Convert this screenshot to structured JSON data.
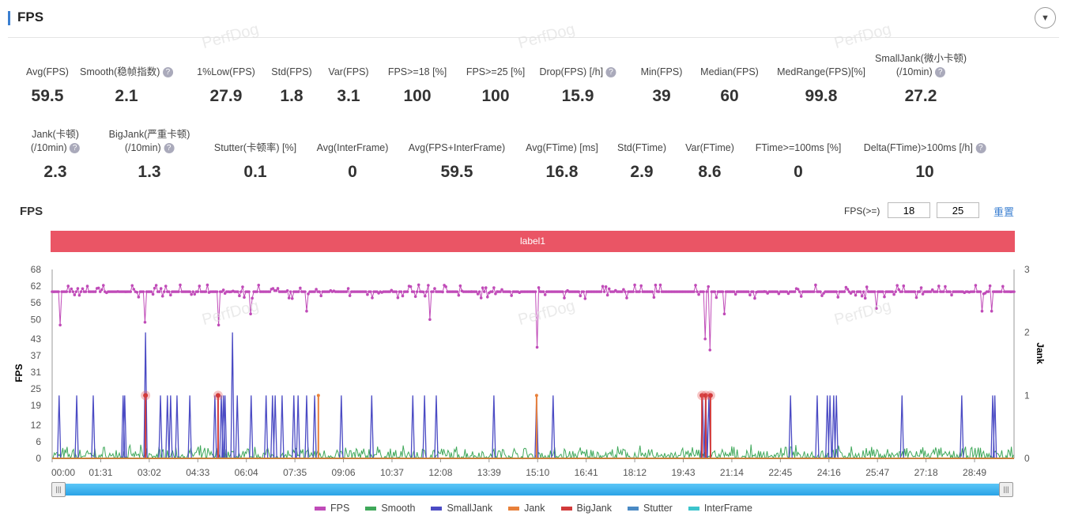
{
  "header": {
    "title": "FPS",
    "collapse_icon": "chevron-down-icon"
  },
  "watermark": "PerfDog",
  "metrics_row1": [
    {
      "label": "Avg(FPS)",
      "value": "59.5",
      "help": false
    },
    {
      "label": "Smooth(稳帧指数)",
      "value": "2.1",
      "help": true
    },
    {
      "label": "1%Low(FPS)",
      "value": "27.9",
      "help": false
    },
    {
      "label": "Std(FPS)",
      "value": "1.8",
      "help": false
    },
    {
      "label": "Var(FPS)",
      "value": "3.1",
      "help": false
    },
    {
      "label": "FPS>=18 [%]",
      "value": "100",
      "help": false
    },
    {
      "label": "FPS>=25 [%]",
      "value": "100",
      "help": false
    },
    {
      "label": "Drop(FPS) [/h]",
      "value": "15.9",
      "help": true
    },
    {
      "label": "Min(FPS)",
      "value": "39",
      "help": false
    },
    {
      "label": "Median(FPS)",
      "value": "60",
      "help": false
    },
    {
      "label": "MedRange(FPS)[%]",
      "value": "99.8",
      "help": false
    },
    {
      "label": "SmallJank(微小卡顿)",
      "label2": "(/10min)",
      "value": "27.2",
      "help": true
    }
  ],
  "metrics_row2": [
    {
      "label": "Jank(卡顿)",
      "label2": "(/10min)",
      "value": "2.3",
      "help": true
    },
    {
      "label": "BigJank(严重卡顿)",
      "label2": "(/10min)",
      "value": "1.3",
      "help": true
    },
    {
      "label": "Stutter(卡顿率) [%]",
      "value": "0.1",
      "help": false
    },
    {
      "label": "Avg(InterFrame)",
      "value": "0",
      "help": false
    },
    {
      "label": "Avg(FPS+InterFrame)",
      "value": "59.5",
      "help": false
    },
    {
      "label": "Avg(FTime) [ms]",
      "value": "16.8",
      "help": false
    },
    {
      "label": "Std(FTime)",
      "value": "2.9",
      "help": false
    },
    {
      "label": "Var(FTime)",
      "value": "8.6",
      "help": false
    },
    {
      "label": "FTime>=100ms [%]",
      "value": "0",
      "help": false
    },
    {
      "label": "Delta(FTime)>100ms [/h]",
      "value": "10",
      "help": true
    }
  ],
  "chart_section": {
    "title": "FPS",
    "threshold_label": "FPS(>=)",
    "threshold1": "18",
    "threshold2": "25",
    "reset": "重置",
    "label_bar": "label1"
  },
  "chart_data": {
    "type": "line",
    "ylabel": "FPS",
    "y2label": "Jank",
    "yticks": [
      "0",
      "6",
      "12",
      "19",
      "25",
      "31",
      "37",
      "43",
      "50",
      "56",
      "62",
      "68"
    ],
    "ylim": [
      0,
      68
    ],
    "y2lim": [
      0,
      3
    ],
    "y2ticks": [
      "0",
      "1",
      "2",
      "3"
    ],
    "xlim_seconds": [
      0,
      1803
    ],
    "xticks": [
      "00:00",
      "01:31",
      "03:02",
      "04:33",
      "06:04",
      "07:35",
      "09:06",
      "10:37",
      "12:08",
      "13:39",
      "15:10",
      "16:41",
      "18:12",
      "19:43",
      "21:14",
      "22:45",
      "24:16",
      "25:47",
      "27:18",
      "28:49"
    ],
    "fps_baseline": 60,
    "fps_dips": [
      [
        16,
        48
      ],
      [
        175,
        49
      ],
      [
        311,
        48
      ],
      [
        373,
        52
      ],
      [
        477,
        53
      ],
      [
        707,
        50
      ],
      [
        910,
        40
      ],
      [
        1225,
        43
      ],
      [
        1234,
        39
      ],
      [
        1260,
        52
      ],
      [
        1545,
        54
      ],
      [
        1742,
        53
      ],
      [
        1760,
        53
      ]
    ],
    "smalljank": [
      [
        13,
        1
      ],
      [
        46,
        1
      ],
      [
        77,
        1
      ],
      [
        133,
        1
      ],
      [
        136,
        1
      ],
      [
        175,
        2
      ],
      [
        203,
        1
      ],
      [
        216,
        1
      ],
      [
        222,
        1
      ],
      [
        234,
        1
      ],
      [
        258,
        1
      ],
      [
        305,
        1
      ],
      [
        317,
        1
      ],
      [
        321,
        1
      ],
      [
        324,
        1
      ],
      [
        338,
        2
      ],
      [
        347,
        1
      ],
      [
        373,
        1
      ],
      [
        401,
        1
      ],
      [
        413,
        1
      ],
      [
        418,
        1
      ],
      [
        431,
        1
      ],
      [
        453,
        1
      ],
      [
        461,
        1
      ],
      [
        477,
        1
      ],
      [
        492,
        1
      ],
      [
        542,
        1
      ],
      [
        599,
        1
      ],
      [
        676,
        1
      ],
      [
        698,
        1
      ],
      [
        720,
        1
      ],
      [
        828,
        1
      ],
      [
        908,
        1
      ],
      [
        939,
        1
      ],
      [
        1219,
        1
      ],
      [
        1225,
        1
      ],
      [
        1231,
        1
      ],
      [
        1384,
        1
      ],
      [
        1434,
        1
      ],
      [
        1453,
        1
      ],
      [
        1458,
        1
      ],
      [
        1465,
        1
      ],
      [
        1470,
        1
      ],
      [
        1593,
        1
      ],
      [
        1705,
        1
      ],
      [
        1763,
        1
      ],
      [
        1767,
        1
      ]
    ],
    "jank": [
      [
        499,
        1
      ],
      [
        908,
        1
      ]
    ],
    "bigjank": [
      [
        175,
        1
      ],
      [
        311,
        1
      ],
      [
        1218,
        1
      ],
      [
        1225,
        1
      ],
      [
        1234,
        1
      ]
    ],
    "legend": [
      {
        "name": "FPS",
        "color": "#c04bb8"
      },
      {
        "name": "Smooth",
        "color": "#3fa85a"
      },
      {
        "name": "SmallJank",
        "color": "#4b4bc4"
      },
      {
        "name": "Jank",
        "color": "#e8803a"
      },
      {
        "name": "BigJank",
        "color": "#d23a3a"
      },
      {
        "name": "Stutter",
        "color": "#4a8ac4"
      },
      {
        "name": "InterFrame",
        "color": "#3cc4cc"
      }
    ]
  }
}
